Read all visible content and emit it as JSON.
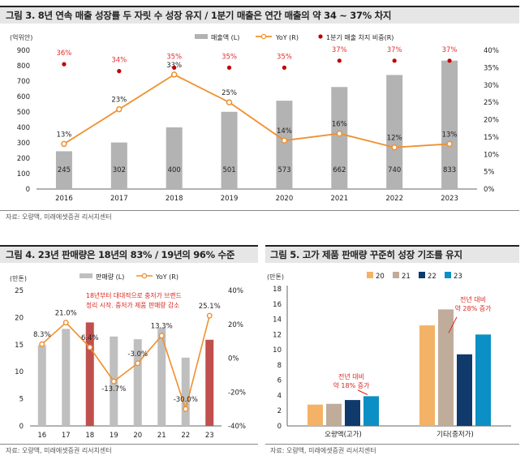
{
  "figure3": {
    "title": "그림 3. 8년 연속 매출 성장률 두 자릿 수 성장 유지 / 1분기 매출은 연간 매출의 약 34 ~ 37% 차지",
    "source": "자료: 오량액, 미래에셋증권 리서치센터",
    "chart_data": {
      "type": "bar",
      "unit_label": "(억위안)",
      "categories": [
        "2016",
        "2017",
        "2018",
        "2019",
        "2020",
        "2021",
        "2022",
        "2023"
      ],
      "series": [
        {
          "name": "매출액 (L)",
          "type": "bar",
          "values": [
            245,
            302,
            400,
            501,
            573,
            662,
            740,
            833
          ],
          "labels": [
            "245",
            "302",
            "400",
            "501",
            "573",
            "662",
            "740",
            "833"
          ],
          "color": "#b3b3b3"
        },
        {
          "name": "YoY (R)",
          "type": "line",
          "values": [
            13,
            23,
            33,
            25,
            14,
            16,
            12,
            13
          ],
          "labels": [
            "13%",
            "23%",
            "33%",
            "25%",
            "14%",
            "16%",
            "12%",
            "13%"
          ],
          "color": "#f0902e"
        },
        {
          "name": "1분기 매출 차지 비중(R)",
          "type": "scatter",
          "values": [
            36,
            34,
            35,
            35,
            35,
            37,
            37,
            37
          ],
          "labels": [
            "36%",
            "34%",
            "35%",
            "35%",
            "35%",
            "37%",
            "37%",
            "37%"
          ],
          "color": "#c00000"
        }
      ],
      "ylim_left": [
        0,
        900
      ],
      "yticks_left": [
        "0",
        "100",
        "200",
        "300",
        "400",
        "500",
        "600",
        "700",
        "800",
        "900"
      ],
      "ylim_right": [
        0,
        40
      ],
      "yticks_right": [
        "0%",
        "5%",
        "10%",
        "15%",
        "20%",
        "25%",
        "30%",
        "35%",
        "40%"
      ]
    }
  },
  "figure4": {
    "title": "그림 4. 23년 판매량은 18년의 83% / 19년의 96% 수준",
    "source": "자료: 오량액, 미래에셋증권 리서치센터",
    "chart_data": {
      "type": "bar",
      "unit_label": "(만톤)",
      "categories": [
        "16",
        "17",
        "18",
        "19",
        "20",
        "21",
        "22",
        "23"
      ],
      "series": [
        {
          "name": "판매량 (L)",
          "type": "bar",
          "values": [
            14.9,
            17.9,
            19.1,
            16.5,
            16.0,
            18.1,
            12.6,
            15.9
          ],
          "highlight": [
            false,
            false,
            true,
            false,
            false,
            false,
            false,
            true
          ],
          "color": "#bfbfbf",
          "highlight_color": "#c0504d"
        },
        {
          "name": "YoY (R)",
          "type": "line",
          "values": [
            8.3,
            21.0,
            6.4,
            -13.7,
            -3.0,
            13.3,
            -30.0,
            25.1
          ],
          "labels": [
            "8.3%",
            "21.0%",
            "6.4%",
            "-13.7%",
            "-3.0%",
            "13.3%",
            "-30.0%",
            "25.1%"
          ],
          "color": "#f0902e"
        }
      ],
      "ylim_left": [
        0,
        25
      ],
      "yticks_left": [
        "0",
        "5",
        "10",
        "15",
        "20",
        "25"
      ],
      "ylim_right": [
        -40,
        40
      ],
      "yticks_right": [
        "-40%",
        "-20%",
        "0%",
        "20%",
        "40%"
      ],
      "annotation": [
        "18년부터 대대적으로 충저가 브랜드",
        "정리 시작. 중저가 제품 판매량 감소"
      ]
    }
  },
  "figure5": {
    "title": "그림 5. 고가 제품 판매량 꾸준히 성장 기조를 유지",
    "source": "자료: 오량액, 미래에셋증권 리서치센터",
    "chart_data": {
      "type": "bar",
      "unit_label": "(만톤)",
      "categories": [
        "오량액(고가)",
        "기타(중저가)"
      ],
      "series": [
        {
          "name": "20",
          "values": [
            2.8,
            13.2
          ],
          "color": "#f4b266"
        },
        {
          "name": "21",
          "values": [
            2.9,
            15.3
          ],
          "color": "#c0ac9a"
        },
        {
          "name": "22",
          "values": [
            3.4,
            9.4
          ],
          "color": "#0f3a6b"
        },
        {
          "name": "23",
          "values": [
            3.9,
            12.0
          ],
          "color": "#0c8fc4"
        }
      ],
      "ylim": [
        0,
        18
      ],
      "yticks": [
        "0",
        "2",
        "4",
        "6",
        "8",
        "10",
        "12",
        "14",
        "16",
        "18"
      ],
      "annotations": [
        [
          "전년 대비",
          "약 18% 증가"
        ],
        [
          "전년 대비",
          "약 28% 증가"
        ]
      ]
    }
  }
}
